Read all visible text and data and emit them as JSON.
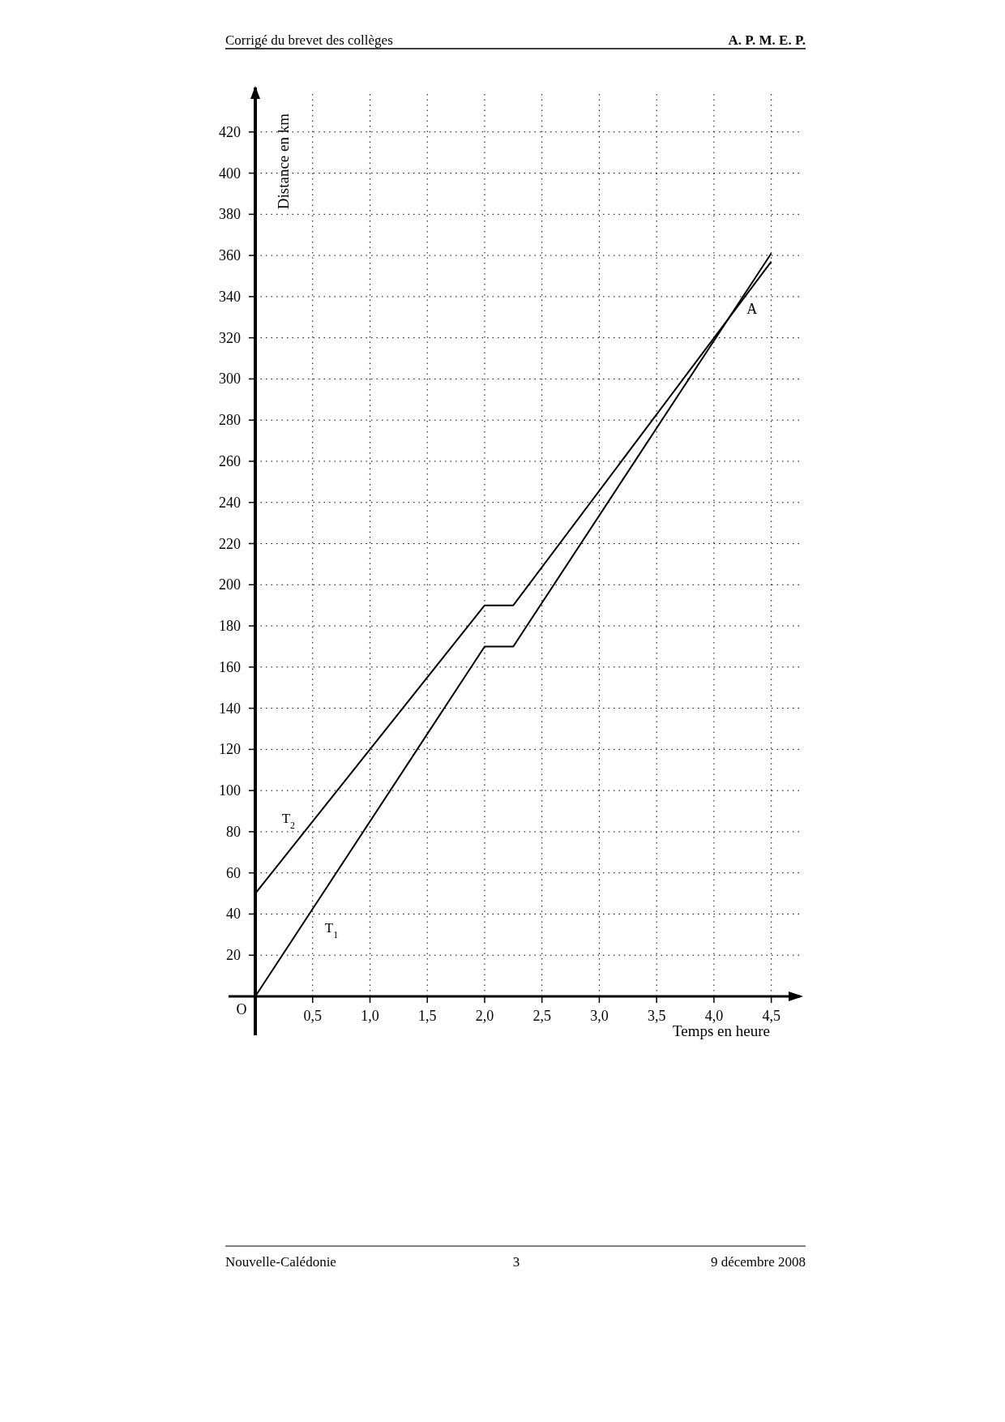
{
  "chart_data": {
    "type": "line",
    "title": "Corrigé du brevet des collèges",
    "xlabel": "Temps en heure",
    "ylabel": "Distance en km",
    "x": [
      0,
      2,
      2.25,
      4.5
    ],
    "series": [
      {
        "name": "T$_{1}$",
        "color": "#000000",
        "values": [
          0,
          170,
          170,
          361
        ]
      },
      {
        "name": "T$_{2}$",
        "color": "#000000",
        "values": [
          50,
          190,
          190,
          357
        ]
      }
    ],
    "xlim": [
      0,
      4.75
    ],
    "ylim": [
      0,
      440
    ],
    "xticks": [
      {
        "value": 0.5,
        "label": "0,5"
      },
      {
        "value": 1,
        "label": "1,0"
      },
      {
        "value": 1.5,
        "label": "1,5"
      },
      {
        "value": 2,
        "label": "2,0"
      },
      {
        "value": 2.5,
        "label": "2,5"
      },
      {
        "value": 3,
        "label": "3,0"
      },
      {
        "value": 3.5,
        "label": "3,5"
      },
      {
        "value": 4,
        "label": "4,0"
      },
      {
        "value": 4.5,
        "label": "4,5"
      }
    ],
    "yticks": [
      {
        "value": 0,
        "label": null
      },
      20,
      40,
      60,
      80,
      100,
      120,
      140,
      160,
      180,
      200,
      220,
      240,
      260,
      280,
      300,
      320,
      340,
      360,
      380,
      400,
      420
    ],
    "grid": true,
    "line_style": "solid",
    "marker": "none",
    "annotations": [
      {
        "text": "A",
        "x": 4.2,
        "y": 335
      },
      "O",
      "A. P. M. E. P.",
      "Nouvelle-Calédonie",
      "3",
      "9 décembre 2008"
    ]
  }
}
